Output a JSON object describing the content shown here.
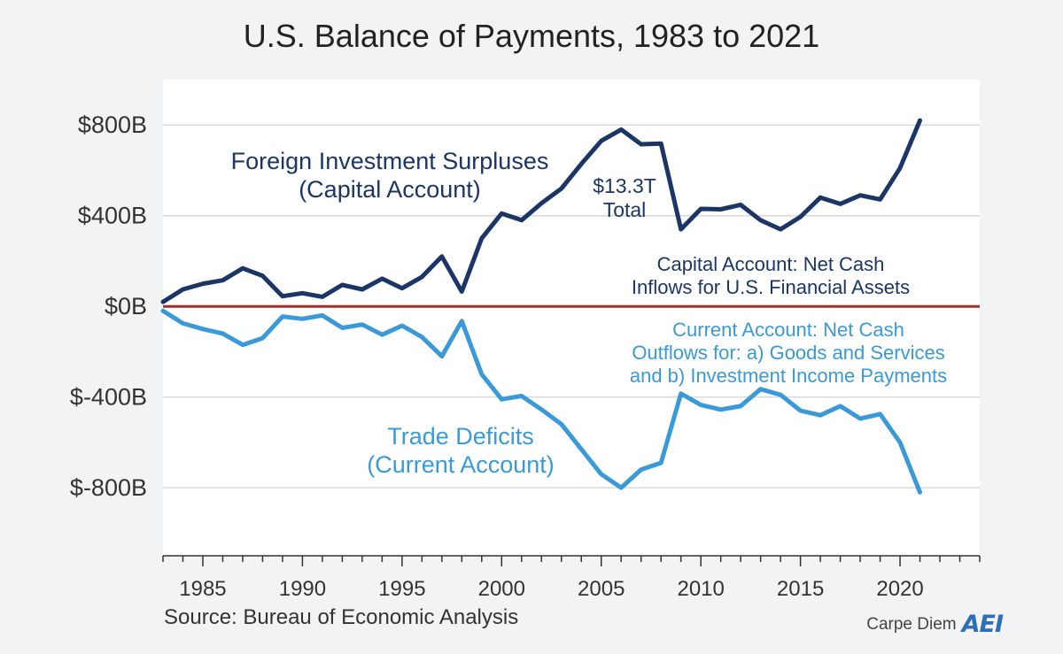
{
  "chart_data": {
    "type": "line",
    "title": "U.S. Balance of Payments, 1983 to 2021",
    "xlabel": "",
    "ylabel": "",
    "x": [
      1983,
      1984,
      1985,
      1986,
      1987,
      1988,
      1989,
      1990,
      1991,
      1992,
      1993,
      1994,
      1995,
      1996,
      1997,
      1998,
      1999,
      2000,
      2001,
      2002,
      2003,
      2004,
      2005,
      2006,
      2007,
      2008,
      2009,
      2010,
      2011,
      2012,
      2013,
      2014,
      2015,
      2016,
      2017,
      2018,
      2019,
      2020,
      2021
    ],
    "xlim": [
      1983,
      2024
    ],
    "ylim": [
      -1100,
      1000
    ],
    "x_ticks": [
      1985,
      1990,
      1995,
      2000,
      2005,
      2010,
      2015,
      2020
    ],
    "x_tick_labels": [
      "1985",
      "1990",
      "1995",
      "2000",
      "2005",
      "2010",
      "2015",
      "2020"
    ],
    "y_ticks": [
      800,
      400,
      0,
      -400,
      -800
    ],
    "y_tick_labels": [
      "$800B",
      "$400B",
      "$0B",
      "$-400B",
      "$-800B"
    ],
    "grid": "horizontal",
    "zero_line_color": "#a52a2a",
    "series": [
      {
        "color": "#1b3566",
        "values": [
          20,
          75,
          100,
          115,
          168,
          135,
          45,
          58,
          42,
          95,
          75,
          122,
          80,
          130,
          220,
          65,
          300,
          410,
          380,
          455,
          520,
          628,
          730,
          780,
          715,
          718,
          340,
          430,
          428,
          448,
          380,
          340,
          395,
          480,
          452,
          490,
          472,
          610,
          820
        ]
      },
      {
        "color": "#3a9ad9",
        "values": [
          -20,
          -75,
          -100,
          -120,
          -170,
          -140,
          -45,
          -55,
          -40,
          -95,
          -80,
          -125,
          -85,
          -135,
          -220,
          -65,
          -300,
          -410,
          -395,
          -455,
          -520,
          -630,
          -740,
          -800,
          -720,
          -690,
          -385,
          -435,
          -455,
          -440,
          -365,
          -390,
          -460,
          -480,
          -440,
          -495,
          -475,
          -600,
          -820
        ]
      }
    ],
    "annotations": {
      "capital_label": [
        "Foreign Investment Surpluses",
        "(Capital Account)"
      ],
      "total_label": [
        "$13.3T",
        "Total"
      ],
      "capital_desc": [
        "Capital Account: Net Cash",
        "Inflows for U.S. Financial Assets"
      ],
      "current_desc": [
        "Current Account: Net Cash",
        "Outflows for: a) Goods and Services",
        "and b) Investment Income Payments"
      ],
      "trade_label": [
        "Trade Deficits",
        "(Current Account)"
      ]
    }
  },
  "footer": {
    "source": "Source: Bureau of Economic Analysis",
    "brand": "Carpe Diem",
    "logo": "AEI"
  },
  "colors": {
    "background": "#f1f3f5",
    "plot_background": "#ffffff",
    "grid": "#d9d9d9",
    "capital": "#1b3566",
    "current": "#3a9ad9"
  }
}
